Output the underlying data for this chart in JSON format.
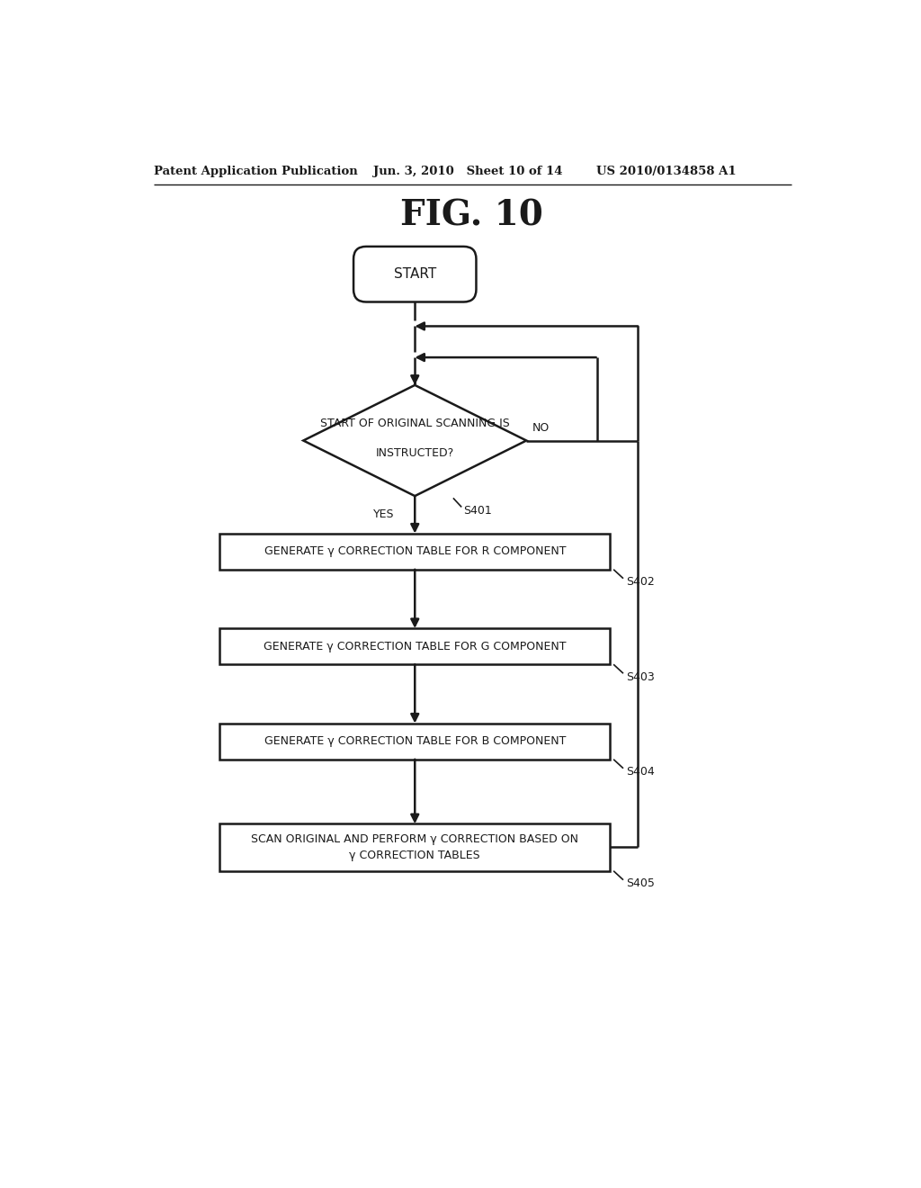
{
  "title": "FIG. 10",
  "header_left": "Patent Application Publication",
  "header_mid": "Jun. 3, 2010   Sheet 10 of 14",
  "header_right": "US 2010/0134858 A1",
  "bg_color": "#ffffff",
  "line_color": "#1a1a1a",
  "text_color": "#1a1a1a",
  "start_label": "START",
  "diamond_line1": "START OF ORIGINAL SCANNING IS",
  "diamond_line2": "INSTRUCTED?",
  "diamond_yes": "YES",
  "diamond_no": "NO",
  "step_labels": [
    "GENERATE γ CORRECTION TABLE FOR R COMPONENT",
    "GENERATE γ CORRECTION TABLE FOR G COMPONENT",
    "GENERATE γ CORRECTION TABLE FOR B COMPONENT",
    "SCAN ORIGINAL AND PERFORM γ CORRECTION BASED ON",
    "γ CORRECTION TABLES"
  ],
  "step_ids": [
    "S401",
    "S402",
    "S403",
    "S404",
    "S405"
  ],
  "fig_label": "FIG. 10"
}
